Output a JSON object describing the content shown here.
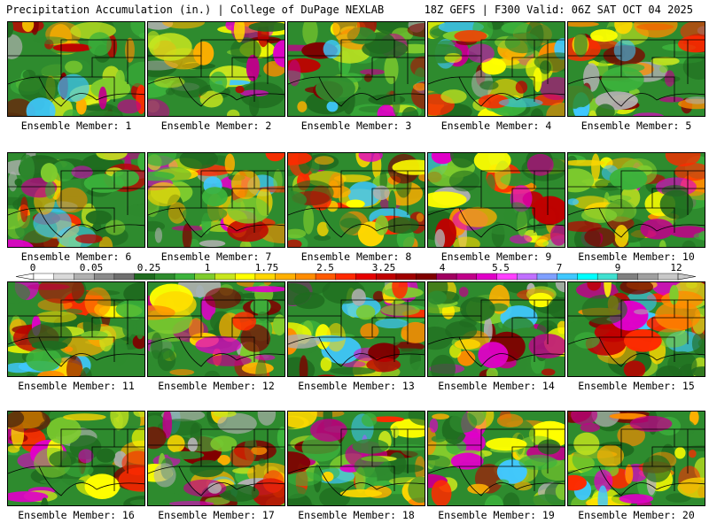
{
  "header": {
    "left": "Precipitation Accumulation (in.) | College of DuPage NEXLAB",
    "right": "18Z GEFS | F300 Valid: 06Z SAT OCT 04 2025"
  },
  "panels": [
    {
      "label": "Ensemble Member: 1",
      "seed": 11
    },
    {
      "label": "Ensemble Member: 2",
      "seed": 23
    },
    {
      "label": "Ensemble Member: 3",
      "seed": 37
    },
    {
      "label": "Ensemble Member: 4",
      "seed": 41
    },
    {
      "label": "Ensemble Member: 5",
      "seed": 53
    },
    {
      "label": "Ensemble Member: 6",
      "seed": 67
    },
    {
      "label": "Ensemble Member: 7",
      "seed": 71
    },
    {
      "label": "Ensemble Member: 8",
      "seed": 83
    },
    {
      "label": "Ensemble Member: 9",
      "seed": 97
    },
    {
      "label": "Ensemble Member: 10",
      "seed": 101
    },
    {
      "label": "Ensemble Member: 11",
      "seed": 113
    },
    {
      "label": "Ensemble Member: 12",
      "seed": 127
    },
    {
      "label": "Ensemble Member: 13",
      "seed": 131
    },
    {
      "label": "Ensemble Member: 14",
      "seed": 149
    },
    {
      "label": "Ensemble Member: 15",
      "seed": 151
    },
    {
      "label": "Ensemble Member: 16",
      "seed": 163
    },
    {
      "label": "Ensemble Member: 17",
      "seed": 173
    },
    {
      "label": "Ensemble Member: 18",
      "seed": 181
    },
    {
      "label": "Ensemble Member: 19",
      "seed": 191
    },
    {
      "label": "Ensemble Member: 20",
      "seed": 197
    }
  ],
  "colorbar": {
    "tick_labels": [
      "0",
      "0.05",
      "0.25",
      "1",
      "1.75",
      "2.5",
      "3.25",
      "4",
      "5.5",
      "7",
      "9",
      "12"
    ],
    "colors": [
      "#ffffff",
      "#d9d9d9",
      "#b0b0b0",
      "#8a8a8a",
      "#6e6e6e",
      "#1f6b1f",
      "#2e8b2e",
      "#3cb33c",
      "#7fcc2e",
      "#c8e61e",
      "#ffff00",
      "#ffd700",
      "#ffb000",
      "#ff8c00",
      "#ff5a00",
      "#ff2a00",
      "#e60000",
      "#c00000",
      "#a00000",
      "#800000",
      "#a00060",
      "#c0008a",
      "#e000c8",
      "#ff40ff",
      "#c070ff",
      "#7fa0ff",
      "#40c8ff",
      "#00ffff",
      "#40e0d0",
      "#808080",
      "#a0a0a0",
      "#c8c8c8"
    ]
  }
}
